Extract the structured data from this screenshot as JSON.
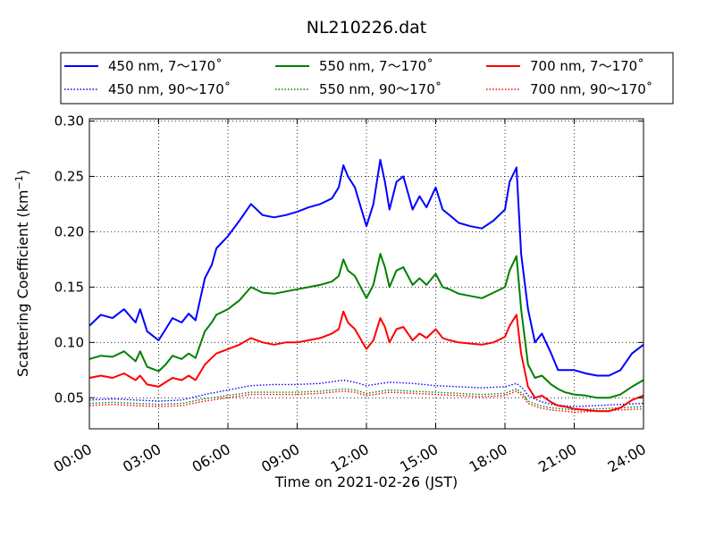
{
  "chart_data": {
    "type": "line",
    "title": "NL210226.dat",
    "xlabel": "Time on 2021-02-26 (JST)",
    "ylabel_main": "Scattering Coefficient (km",
    "ylabel_sup": "−1",
    "ylabel_end": ")",
    "xlim": [
      0,
      24
    ],
    "ylim": [
      0.022,
      0.302
    ],
    "x_ticks": [
      0,
      3,
      6,
      9,
      12,
      15,
      18,
      21,
      24
    ],
    "x_tick_labels": [
      "00:00",
      "03:00",
      "06:00",
      "09:00",
      "12:00",
      "15:00",
      "18:00",
      "21:00",
      "24:00"
    ],
    "y_ticks": [
      0.05,
      0.1,
      0.15,
      0.2,
      0.25,
      0.3
    ],
    "y_tick_labels": [
      "0.05",
      "0.10",
      "0.15",
      "0.20",
      "0.25",
      "0.30"
    ],
    "grid": true,
    "legend_placement": "top",
    "series": [
      {
        "name": "450 nm, 7～170˚",
        "color": "#0000ff",
        "style": "solid",
        "x": [
          0,
          0.5,
          1,
          1.5,
          2,
          2.2,
          2.5,
          3,
          3.3,
          3.6,
          4,
          4.3,
          4.6,
          5,
          5.3,
          5.5,
          6,
          6.5,
          7,
          7.5,
          8,
          8.5,
          9,
          9.5,
          10,
          10.5,
          10.8,
          11,
          11.2,
          11.5,
          12,
          12.3,
          12.6,
          12.8,
          13,
          13.3,
          13.6,
          14,
          14.3,
          14.6,
          15,
          15.3,
          15.6,
          16,
          16.5,
          17,
          17.5,
          18,
          18.2,
          18.5,
          18.7,
          19,
          19.3,
          19.6,
          20,
          20.3,
          20.6,
          21,
          21.5,
          22,
          22.5,
          23,
          23.5,
          24
        ],
        "y": [
          0.115,
          0.125,
          0.122,
          0.13,
          0.118,
          0.13,
          0.11,
          0.102,
          0.112,
          0.122,
          0.118,
          0.126,
          0.12,
          0.158,
          0.17,
          0.185,
          0.196,
          0.21,
          0.225,
          0.215,
          0.213,
          0.215,
          0.218,
          0.222,
          0.225,
          0.23,
          0.24,
          0.26,
          0.25,
          0.24,
          0.205,
          0.225,
          0.265,
          0.245,
          0.22,
          0.245,
          0.25,
          0.22,
          0.232,
          0.222,
          0.24,
          0.22,
          0.215,
          0.208,
          0.205,
          0.203,
          0.21,
          0.22,
          0.245,
          0.258,
          0.18,
          0.13,
          0.1,
          0.108,
          0.09,
          0.075,
          0.075,
          0.075,
          0.072,
          0.07,
          0.07,
          0.075,
          0.09,
          0.098
        ]
      },
      {
        "name": "450 nm, 90～170˚",
        "color": "#0000ff",
        "style": "dotted",
        "x": [
          0,
          1,
          2,
          3,
          4,
          5,
          6,
          7,
          8,
          9,
          10,
          11,
          11.5,
          12,
          13,
          14,
          15,
          16,
          17,
          18,
          18.5,
          18.8,
          19,
          19.5,
          20,
          21,
          22,
          23,
          24
        ],
        "y": [
          0.048,
          0.049,
          0.048,
          0.047,
          0.048,
          0.053,
          0.057,
          0.061,
          0.062,
          0.062,
          0.063,
          0.066,
          0.064,
          0.061,
          0.064,
          0.063,
          0.061,
          0.06,
          0.059,
          0.06,
          0.063,
          0.058,
          0.052,
          0.047,
          0.044,
          0.042,
          0.043,
          0.044,
          0.045
        ]
      },
      {
        "name": "550 nm, 7～170˚",
        "color": "#008000",
        "style": "solid",
        "x": [
          0,
          0.5,
          1,
          1.5,
          2,
          2.2,
          2.5,
          3,
          3.3,
          3.6,
          4,
          4.3,
          4.6,
          5,
          5.3,
          5.5,
          6,
          6.5,
          7,
          7.5,
          8,
          8.5,
          9,
          9.5,
          10,
          10.5,
          10.8,
          11,
          11.2,
          11.5,
          12,
          12.3,
          12.6,
          12.8,
          13,
          13.3,
          13.6,
          14,
          14.3,
          14.6,
          15,
          15.3,
          15.6,
          16,
          16.5,
          17,
          17.5,
          18,
          18.2,
          18.5,
          18.7,
          19,
          19.3,
          19.6,
          20,
          20.3,
          20.6,
          21,
          21.5,
          22,
          22.5,
          23,
          23.5,
          24
        ],
        "y": [
          0.085,
          0.088,
          0.087,
          0.092,
          0.083,
          0.092,
          0.078,
          0.074,
          0.08,
          0.088,
          0.085,
          0.09,
          0.086,
          0.11,
          0.118,
          0.125,
          0.13,
          0.138,
          0.15,
          0.145,
          0.144,
          0.146,
          0.148,
          0.15,
          0.152,
          0.155,
          0.16,
          0.175,
          0.165,
          0.16,
          0.14,
          0.152,
          0.18,
          0.168,
          0.15,
          0.165,
          0.168,
          0.152,
          0.158,
          0.152,
          0.162,
          0.15,
          0.148,
          0.144,
          0.142,
          0.14,
          0.145,
          0.15,
          0.165,
          0.178,
          0.13,
          0.08,
          0.068,
          0.07,
          0.062,
          0.058,
          0.055,
          0.053,
          0.052,
          0.05,
          0.05,
          0.053,
          0.06,
          0.066
        ]
      },
      {
        "name": "550 nm, 90～170˚",
        "color": "#008000",
        "style": "dotted",
        "x": [
          0,
          1,
          2,
          3,
          4,
          5,
          6,
          7,
          8,
          9,
          10,
          11,
          11.5,
          12,
          13,
          14,
          15,
          16,
          17,
          18,
          18.5,
          18.8,
          19,
          19.5,
          20,
          21,
          22,
          23,
          24
        ],
        "y": [
          0.045,
          0.046,
          0.045,
          0.044,
          0.045,
          0.049,
          0.052,
          0.055,
          0.055,
          0.055,
          0.056,
          0.058,
          0.057,
          0.054,
          0.057,
          0.056,
          0.055,
          0.054,
          0.053,
          0.054,
          0.058,
          0.053,
          0.047,
          0.043,
          0.041,
          0.039,
          0.04,
          0.041,
          0.042
        ]
      },
      {
        "name": "700 nm, 7～170˚",
        "color": "#ff0000",
        "style": "solid",
        "x": [
          0,
          0.5,
          1,
          1.5,
          2,
          2.2,
          2.5,
          3,
          3.3,
          3.6,
          4,
          4.3,
          4.6,
          5,
          5.3,
          5.5,
          6,
          6.5,
          7,
          7.5,
          8,
          8.5,
          9,
          9.5,
          10,
          10.5,
          10.8,
          11,
          11.2,
          11.5,
          12,
          12.3,
          12.6,
          12.8,
          13,
          13.3,
          13.6,
          14,
          14.3,
          14.6,
          15,
          15.3,
          15.6,
          16,
          16.5,
          17,
          17.5,
          18,
          18.2,
          18.5,
          18.7,
          19,
          19.3,
          19.6,
          20,
          20.3,
          20.6,
          21,
          21.5,
          22,
          22.5,
          23,
          23.5,
          24
        ],
        "y": [
          0.068,
          0.07,
          0.068,
          0.072,
          0.066,
          0.07,
          0.062,
          0.06,
          0.064,
          0.068,
          0.066,
          0.07,
          0.066,
          0.08,
          0.086,
          0.09,
          0.094,
          0.098,
          0.104,
          0.1,
          0.098,
          0.1,
          0.1,
          0.102,
          0.104,
          0.108,
          0.112,
          0.128,
          0.118,
          0.112,
          0.094,
          0.102,
          0.122,
          0.114,
          0.1,
          0.112,
          0.114,
          0.102,
          0.108,
          0.104,
          0.112,
          0.104,
          0.102,
          0.1,
          0.099,
          0.098,
          0.1,
          0.105,
          0.115,
          0.125,
          0.09,
          0.06,
          0.05,
          0.052,
          0.046,
          0.043,
          0.042,
          0.04,
          0.039,
          0.038,
          0.038,
          0.041,
          0.048,
          0.052
        ]
      },
      {
        "name": "700 nm, 90～170˚",
        "color": "#ff0000",
        "style": "dotted",
        "x": [
          0,
          1,
          2,
          3,
          4,
          5,
          6,
          7,
          8,
          9,
          10,
          11,
          11.5,
          12,
          13,
          14,
          15,
          16,
          17,
          18,
          18.5,
          18.8,
          19,
          19.5,
          20,
          21,
          22,
          23,
          24
        ],
        "y": [
          0.043,
          0.044,
          0.043,
          0.042,
          0.043,
          0.047,
          0.05,
          0.053,
          0.053,
          0.053,
          0.054,
          0.056,
          0.055,
          0.052,
          0.055,
          0.054,
          0.053,
          0.052,
          0.051,
          0.052,
          0.056,
          0.051,
          0.045,
          0.041,
          0.039,
          0.037,
          0.038,
          0.039,
          0.04
        ]
      }
    ]
  }
}
